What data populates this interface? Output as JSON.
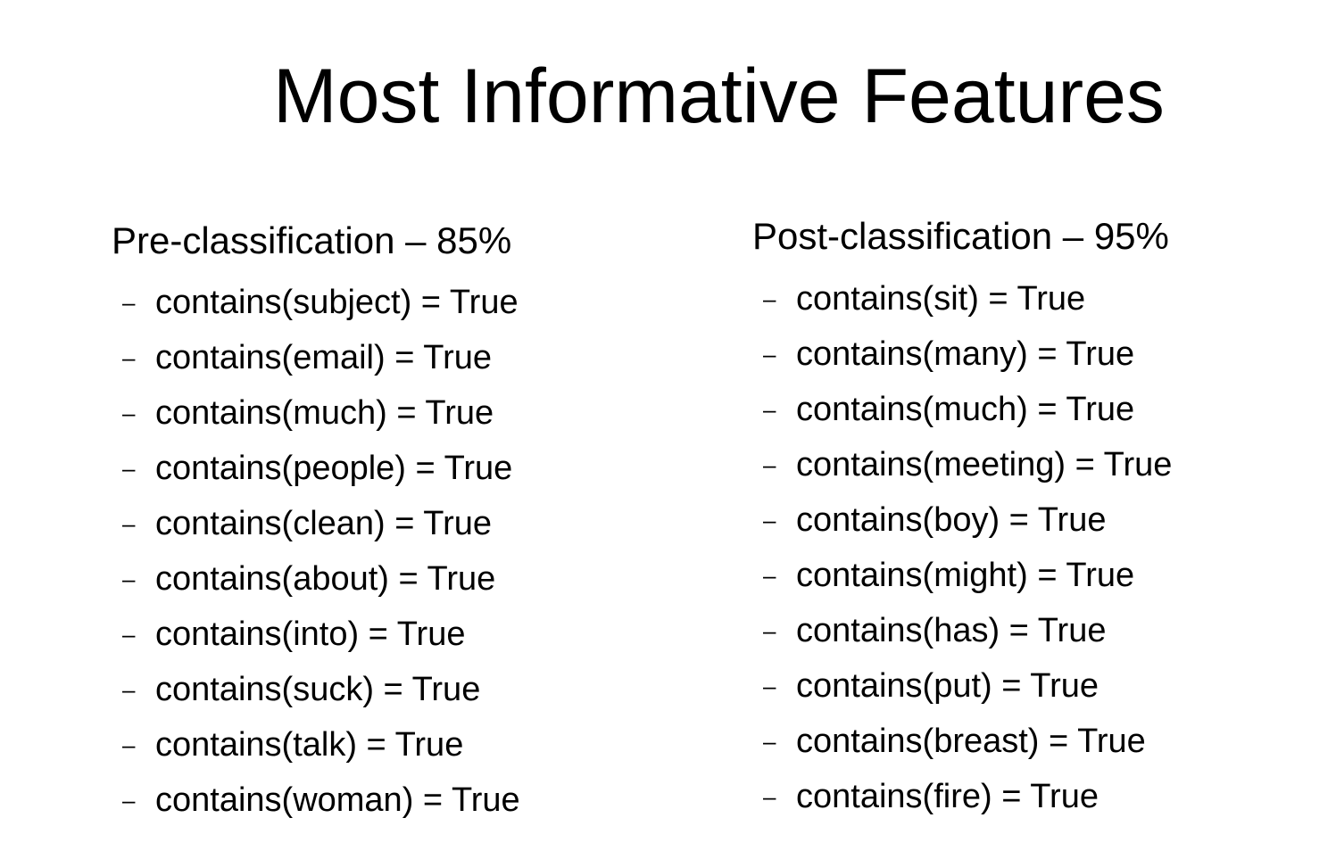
{
  "title": "Most Informative Features",
  "columns": [
    {
      "heading": "Pre-classification – 85%",
      "bullet": "–",
      "items": [
        "contains(subject) = True",
        "contains(email) = True",
        "contains(much) = True",
        "contains(people) = True",
        "contains(clean) = True",
        "contains(about) = True",
        "contains(into) = True",
        "contains(suck) = True",
        "contains(talk) = True",
        "contains(woman) = True"
      ]
    },
    {
      "heading": "Post-classification – 95%",
      "bullet": "–",
      "items": [
        "contains(sit) = True",
        "contains(many) = True",
        "contains(much) = True",
        "contains(meeting) = True",
        "contains(boy) = True",
        "contains(might) = True",
        "contains(has) = True",
        "contains(put) = True",
        "contains(breast) = True",
        "contains(fire) = True"
      ]
    }
  ]
}
